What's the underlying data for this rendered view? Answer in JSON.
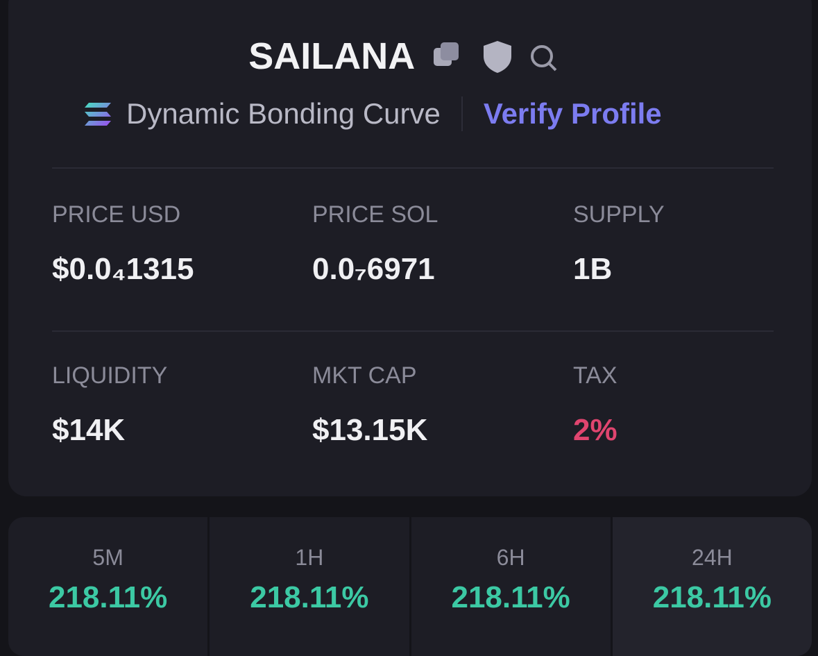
{
  "header": {
    "title": "SAILANA",
    "subtitle": "Dynamic Bonding Curve",
    "link": "Verify Profile"
  },
  "stats": [
    {
      "label": "PRICE USD",
      "value": "$0.0₄1315"
    },
    {
      "label": "PRICE SOL",
      "value": "0.0₇6971"
    },
    {
      "label": "SUPPLY",
      "value": "1B"
    },
    {
      "label": "LIQUIDITY",
      "value": "$14K"
    },
    {
      "label": "MKT CAP",
      "value": "$13.15K"
    },
    {
      "label": "TAX",
      "value": "2%"
    }
  ],
  "changes": [
    {
      "label": "5M",
      "value": "218.11%"
    },
    {
      "label": "1H",
      "value": "218.11%"
    },
    {
      "label": "6H",
      "value": "218.11%"
    },
    {
      "label": "24H",
      "value": "218.11%"
    }
  ]
}
